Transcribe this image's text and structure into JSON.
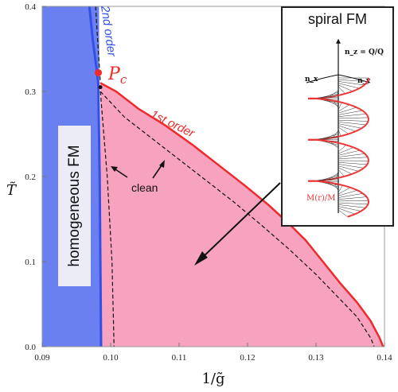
{
  "chart_data": {
    "type": "area",
    "xlabel": "1/g̃",
    "ylabel": "T̃",
    "xlim": [
      0.09,
      0.14
    ],
    "ylim": [
      0.0,
      0.4
    ],
    "x_ticks": [
      "0.09",
      "0.10",
      "0.11",
      "0.12",
      "0.13",
      "0.14"
    ],
    "y_ticks": [
      "0.0",
      "0.1",
      "0.2",
      "0.3",
      "0.4"
    ],
    "grid": false,
    "regions": {
      "homogeneous_fm": {
        "label": "homogeneous FM",
        "color": "#6a7ff0",
        "boundary": [
          [
            0.094,
            0.4
          ],
          [
            0.0983,
            0.4
          ],
          [
            0.0985,
            0.0
          ]
        ]
      },
      "spiral_fm": {
        "label": "spiral FM",
        "color": "#f7a3c0",
        "boundary": [
          [
            0.0985,
            0.31
          ],
          [
            0.1008,
            0.3
          ],
          [
            0.104,
            0.28
          ],
          [
            0.108,
            0.26
          ],
          [
            0.112,
            0.237
          ],
          [
            0.116,
            0.212
          ],
          [
            0.1195,
            0.19
          ],
          [
            0.123,
            0.167
          ],
          [
            0.126,
            0.145
          ],
          [
            0.1285,
            0.125
          ],
          [
            0.131,
            0.1
          ],
          [
            0.1335,
            0.075
          ],
          [
            0.136,
            0.052
          ],
          [
            0.138,
            0.03
          ],
          [
            0.1393,
            0.01
          ],
          [
            0.1398,
            0.0
          ]
        ]
      }
    },
    "series": [
      {
        "name": "2nd order",
        "color": "#3050e8",
        "style": "solid",
        "points": [
          [
            0.0969,
            0.4
          ],
          [
            0.0974,
            0.36
          ],
          [
            0.0979,
            0.33
          ],
          [
            0.0982,
            0.31
          ],
          [
            0.0984,
            0.2
          ],
          [
            0.0985,
            0.1
          ],
          [
            0.0986,
            0.0
          ]
        ]
      },
      {
        "name": "2nd order dashed",
        "color": "#111111",
        "style": "dashed",
        "points": [
          [
            0.0978,
            0.4
          ],
          [
            0.0981,
            0.36
          ],
          [
            0.0985,
            0.31
          ]
        ]
      },
      {
        "name": "1st order",
        "color": "#ee2a2a",
        "style": "solid",
        "points": [
          [
            0.0985,
            0.31
          ],
          [
            0.1008,
            0.3
          ],
          [
            0.104,
            0.28
          ],
          [
            0.108,
            0.26
          ],
          [
            0.112,
            0.237
          ],
          [
            0.116,
            0.212
          ],
          [
            0.1195,
            0.19
          ],
          [
            0.123,
            0.167
          ],
          [
            0.126,
            0.145
          ],
          [
            0.1285,
            0.125
          ],
          [
            0.131,
            0.1
          ],
          [
            0.1335,
            0.075
          ],
          [
            0.136,
            0.052
          ],
          [
            0.138,
            0.03
          ],
          [
            0.1393,
            0.01
          ],
          [
            0.1398,
            0.0
          ]
        ]
      },
      {
        "name": "clean spiral",
        "color": "#111111",
        "style": "dashed",
        "points": [
          [
            0.0985,
            0.3
          ],
          [
            0.102,
            0.27
          ],
          [
            0.106,
            0.245
          ],
          [
            0.11,
            0.22
          ],
          [
            0.114,
            0.195
          ],
          [
            0.118,
            0.17
          ],
          [
            0.122,
            0.143
          ],
          [
            0.126,
            0.115
          ],
          [
            0.13,
            0.085
          ],
          [
            0.133,
            0.06
          ],
          [
            0.136,
            0.035
          ],
          [
            0.138,
            0.01
          ],
          [
            0.1385,
            0.0
          ]
        ]
      },
      {
        "name": "clean vertical",
        "color": "#111111",
        "style": "dashed",
        "points": [
          [
            0.0985,
            0.3
          ],
          [
            0.0995,
            0.2
          ],
          [
            0.1002,
            0.1
          ],
          [
            0.1005,
            0.0
          ]
        ]
      }
    ],
    "points": {
      "pc": {
        "label": "P_c",
        "x": 0.0982,
        "y": 0.322,
        "color": "#ee2a2a"
      },
      "tri": {
        "x": 0.0985,
        "y": 0.305,
        "color": "#111111"
      }
    },
    "annotations": {
      "second_order": {
        "text": "2nd order",
        "color": "#3050e8"
      },
      "first_order": {
        "text": "1st order",
        "color": "#ee2a2a"
      },
      "clean": {
        "text": "clean"
      },
      "pc": {
        "text": "P",
        "sub": "c"
      }
    }
  },
  "inset": {
    "title": "spiral FM",
    "labels": {
      "nz": "n_z = Q/Q",
      "nx": "n_x",
      "ny": "n_y",
      "m": "M(r)/M"
    },
    "colors": {
      "helix": "#ee3333",
      "axis": "#111111"
    }
  }
}
